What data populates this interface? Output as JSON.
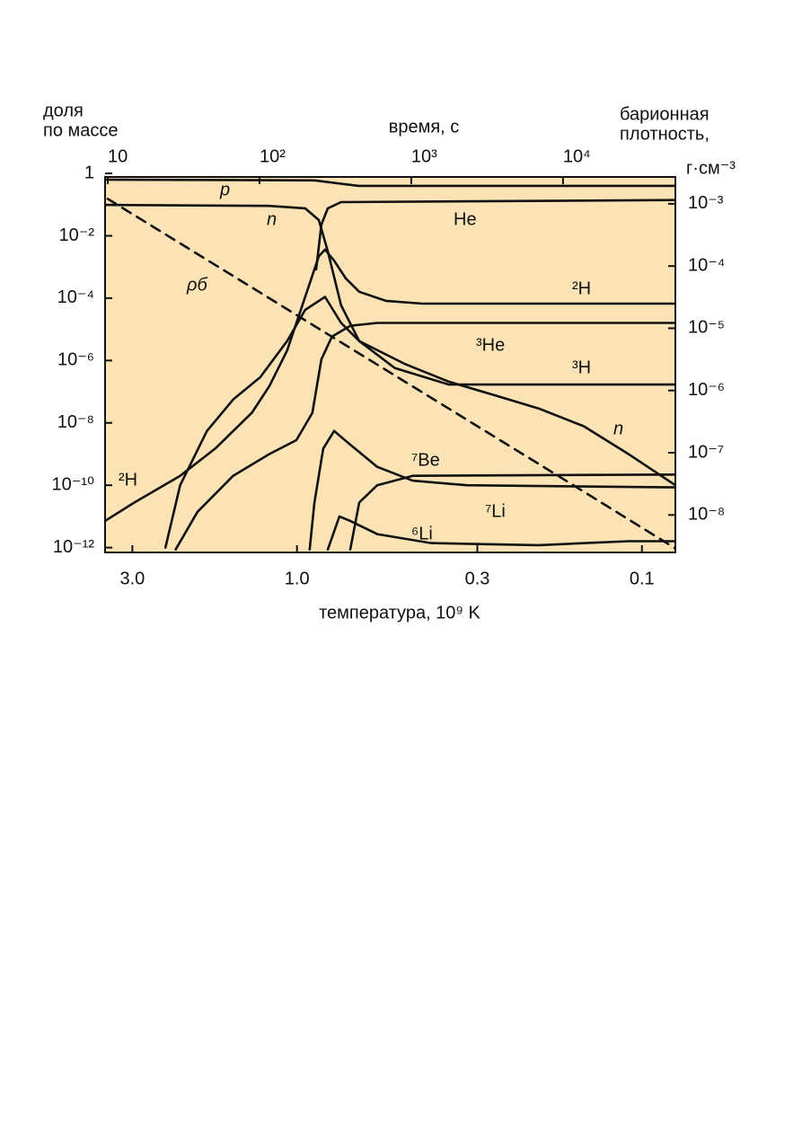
{
  "chart_data": {
    "type": "line",
    "ylabel": [
      "доля",
      "по массе"
    ],
    "xlabel": "время, с",
    "y2label": [
      "барионная",
      "плотность,",
      "г·см⁻³"
    ],
    "x2label": "температура, 10⁹ K",
    "xscale": "log",
    "yscale": "log",
    "x2scale": "log",
    "y2scale": "log",
    "xlim": [
      9.6,
      55000
    ],
    "xticks": [
      10,
      {
        "value": 100,
        "label": "10²"
      },
      {
        "value": 1000,
        "label": "10³"
      },
      {
        "value": 10000,
        "label": "10⁴"
      }
    ],
    "x2lim": [
      3.6,
      0.08
    ],
    "x2ticks": [
      {
        "value": 3,
        "label": "3.0"
      },
      {
        "value": 1,
        "label": "1.0"
      },
      0.3,
      0.1
    ],
    "ylim": [
      7e-13,
      0.77
    ],
    "yticks": [
      1,
      {
        "value": 0.01,
        "label": "10⁻²"
      },
      {
        "value": 0.0001,
        "label": "10⁻⁴"
      },
      {
        "value": 1e-06,
        "label": "10⁻⁶"
      },
      {
        "value": 1e-08,
        "label": "10⁻⁸"
      },
      {
        "value": 1e-10,
        "label": "10⁻¹⁰"
      },
      {
        "value": 1e-12,
        "label": "10⁻¹²"
      }
    ],
    "y2lim": [
      2.5e-09,
      0.0027
    ],
    "y2ticks": [
      {
        "value": 0.001,
        "label": "10⁻³"
      },
      {
        "value": 0.0001,
        "label": "10⁻⁴"
      },
      {
        "value": 1e-05,
        "label": "10⁻⁵"
      },
      {
        "value": 1e-06,
        "label": "10⁻⁶"
      },
      {
        "value": 1e-07,
        "label": "10⁻⁷"
      },
      {
        "value": 1e-08,
        "label": "10⁻⁸"
      }
    ],
    "background": "#fbe3b6",
    "series": [
      {
        "name": "p",
        "color": "#111111",
        "x": [
          9.6,
          230,
          450,
          55000
        ],
        "values": [
          0.63,
          0.6,
          0.4,
          0.4
        ]
      },
      {
        "name": "n",
        "color": "#111111",
        "x": [
          9.6,
          115,
          200,
          246,
          282,
          345,
          454,
          900,
          1770,
          3500,
          6900,
          13700,
          27000,
          55000
        ],
        "values": [
          0.098,
          0.091,
          0.076,
          0.032,
          0.0032,
          5.9e-05,
          4.2e-06,
          7.9e-07,
          2.1e-07,
          7.8e-08,
          2.9e-08,
          7.8e-09,
          1e-09,
          1e-10
        ]
      },
      {
        "name": "He",
        "color": "#111111",
        "x": [
          236,
          256,
          282,
          345,
          55000
        ],
        "values": [
          0.00083,
          0.023,
          0.076,
          0.12,
          0.14
        ]
      },
      {
        "name": "²H",
        "color": "#111111",
        "x": [
          9.6,
          15,
          30,
          51,
          89,
          116,
          152,
          200,
          246,
          270,
          310,
          370,
          454,
          680,
          1180,
          55000
        ],
        "values": [
          7.2e-12,
          2.8e-11,
          2e-10,
          1.5e-09,
          2.1e-08,
          1.5e-07,
          2.1e-06,
          0.00011,
          0.0022,
          0.0036,
          0.0016,
          0.00043,
          0.00016,
          8.2e-05,
          6.7e-05,
          6.7e-05
        ]
      },
      {
        "name": "³He",
        "color": "#111111",
        "x": [
          28,
          39,
          67,
          116,
          175,
          223,
          256,
          300,
          396,
          596,
          55000
        ],
        "values": [
          8.7e-13,
          1.4e-11,
          2e-10,
          1e-09,
          2.8e-09,
          2.1e-08,
          1.1e-06,
          5.8e-06,
          1.3e-05,
          1.6e-05,
          1.6e-05
        ]
      },
      {
        "name": "³H",
        "color": "#111111",
        "x": [
          24,
          30,
          45,
          67,
          101,
          152,
          200,
          270,
          345,
          454,
          780,
          1770,
          55000
        ],
        "values": [
          1e-12,
          1e-10,
          5.5e-09,
          5.6e-08,
          2.9e-07,
          4.2e-06,
          4.2e-05,
          0.00011,
          1.6e-05,
          4.2e-06,
          5.7e-07,
          1.7e-07,
          1.7e-07
        ]
      },
      {
        "name": "⁷Be",
        "color": "#111111",
        "x": [
          214,
          230,
          263,
          310,
          396,
          596,
          1020,
          2330,
          55000
        ],
        "values": [
          8.7e-13,
          2.8e-11,
          1.5e-09,
          5.5e-09,
          2e-09,
          3.9e-10,
          1.4e-10,
          1e-10,
          8.5e-11
        ]
      },
      {
        "name": "⁷Li",
        "color": "#111111",
        "x": [
          396,
          454,
          596,
          1020,
          55000
        ],
        "values": [
          8.7e-13,
          2.8e-11,
          1e-10,
          2e-10,
          2.2e-10
        ]
      },
      {
        "name": "⁶Li",
        "color": "#111111",
        "x": [
          282,
          336,
          396,
          596,
          1350,
          6900,
          27000,
          55000
        ],
        "values": [
          8.7e-13,
          1e-11,
          7.2e-12,
          2.7e-12,
          1.4e-12,
          1.2e-12,
          1.6e-12,
          1.6e-12
        ]
      },
      {
        "name": "ρб",
        "color": "#111111",
        "axis": "y2",
        "linestyle": "dashed",
        "x": [
          10,
          100,
          1000,
          10000,
          55000
        ],
        "values": [
          0.0012,
          3.8e-05,
          1.2e-06,
          3.8e-08,
          2.9e-09
        ]
      }
    ],
    "annotations": [
      "n",
      "²H"
    ]
  }
}
